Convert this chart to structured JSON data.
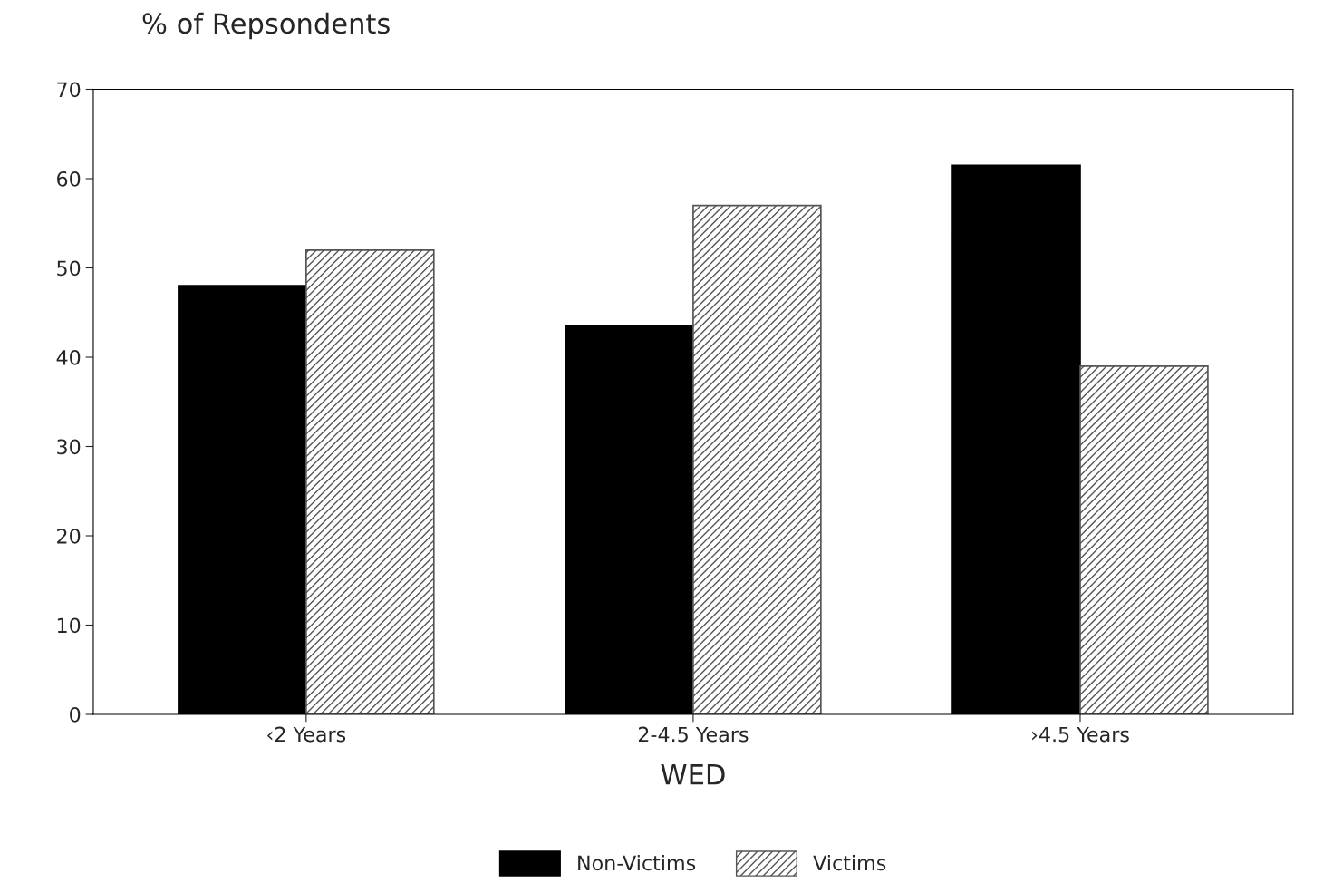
{
  "chart_data": {
    "type": "bar",
    "ylabel": "% of Repsondents",
    "xlabel": "WED",
    "categories": [
      "‹2 Years",
      "2-4.5 Years",
      "›4.5 Years"
    ],
    "series": [
      {
        "name": "Non-Victims",
        "color": "#000000",
        "values": [
          48,
          43.5,
          61.5
        ]
      },
      {
        "name": "Victims",
        "color": "#555555",
        "values": [
          52,
          57,
          39
        ]
      }
    ],
    "ylim": [
      0,
      70
    ],
    "yticks": [
      0,
      10,
      20,
      30,
      40,
      50,
      60,
      70
    ],
    "grid": false,
    "legend": "bottom"
  }
}
